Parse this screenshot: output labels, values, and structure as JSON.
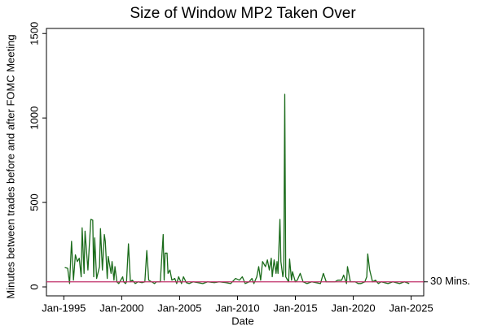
{
  "chart_data": {
    "type": "line",
    "title": "Size of Window MP2 Taken Over",
    "x_label": "Date",
    "y_label": "Minutes between trades before and after FOMC Meeting",
    "color": "#1a6b1a",
    "x": [
      "1995-02",
      "1995-05",
      "1995-07",
      "1995-09",
      "1995-11",
      "1996-01",
      "1996-03",
      "1996-05",
      "1996-07",
      "1996-08",
      "1996-10",
      "1996-11",
      "1997-02",
      "1997-05",
      "1997-07",
      "1997-08",
      "1997-09",
      "1997-11",
      "1998-02",
      "1998-03",
      "1998-05",
      "1998-07",
      "1998-08",
      "1998-10",
      "1998-11",
      "1999-02",
      "1999-03",
      "1999-05",
      "1999-06",
      "1999-08",
      "1999-10",
      "2000-02",
      "2000-03",
      "2000-05",
      "2000-06",
      "2000-08",
      "2000-10",
      "2000-12",
      "2001-03",
      "2001-06",
      "2001-10",
      "2002-01",
      "2002-03",
      "2002-05",
      "2002-08",
      "2002-11",
      "2003-01",
      "2003-05",
      "2003-08",
      "2003-09",
      "2003-10",
      "2003-12",
      "2004-01",
      "2004-03",
      "2004-05",
      "2004-08",
      "2004-10",
      "2004-12",
      "2005-03",
      "2005-05",
      "2005-08",
      "2005-11",
      "2006-03",
      "2006-08",
      "2007-01",
      "2007-06",
      "2008-01",
      "2008-06",
      "2009-01",
      "2009-06",
      "2009-11",
      "2010-03",
      "2010-06",
      "2010-09",
      "2011-01",
      "2011-04",
      "2011-06",
      "2011-09",
      "2011-11",
      "2012-01",
      "2012-03",
      "2012-06",
      "2012-08",
      "2012-10",
      "2012-12",
      "2013-01",
      "2013-03",
      "2013-05",
      "2013-06",
      "2013-07",
      "2013-09",
      "2013-10",
      "2013-12",
      "2014-01",
      "2014-02",
      "2014-03",
      "2014-06",
      "2014-07",
      "2014-09",
      "2014-10",
      "2015-01",
      "2015-03",
      "2015-06",
      "2015-09",
      "2016-01",
      "2016-06",
      "2017-03",
      "2017-06",
      "2017-09",
      "2018-03",
      "2018-06",
      "2018-09",
      "2019-01",
      "2019-03",
      "2019-06",
      "2019-07",
      "2019-10",
      "2020-03",
      "2020-06",
      "2020-09",
      "2021-01",
      "2021-03",
      "2021-04",
      "2021-06",
      "2021-09",
      "2021-12",
      "2022-03",
      "2022-06",
      "2023-01",
      "2023-06",
      "2024-01",
      "2024-06",
      "2024-11"
    ],
    "values": [
      115,
      110,
      20,
      270,
      40,
      190,
      150,
      170,
      60,
      350,
      80,
      330,
      100,
      400,
      395,
      60,
      290,
      50,
      120,
      345,
      100,
      310,
      270,
      50,
      180,
      80,
      150,
      40,
      120,
      30,
      20,
      60,
      30,
      20,
      30,
      255,
      30,
      40,
      20,
      30,
      25,
      30,
      215,
      40,
      30,
      20,
      30,
      30,
      310,
      40,
      200,
      200,
      80,
      100,
      40,
      50,
      20,
      60,
      20,
      60,
      25,
      20,
      30,
      25,
      20,
      30,
      25,
      30,
      25,
      20,
      50,
      40,
      60,
      20,
      30,
      50,
      20,
      60,
      120,
      40,
      150,
      120,
      160,
      100,
      170,
      60,
      160,
      80,
      150,
      80,
      400,
      150,
      60,
      100,
      1140,
      60,
      30,
      165,
      40,
      90,
      30,
      40,
      80,
      30,
      20,
      30,
      20,
      80,
      30,
      30,
      30,
      40,
      40,
      70,
      20,
      120,
      30,
      30,
      20,
      20,
      30,
      60,
      195,
      100,
      30,
      40,
      20,
      30,
      20,
      30,
      20,
      30,
      20
    ],
    "xlim": [
      "1993-07",
      "2026-02"
    ],
    "xticks": [
      {
        "value": "1995-01",
        "label": "Jan-1995"
      },
      {
        "value": "2000-01",
        "label": "Jan-2000"
      },
      {
        "value": "2005-01",
        "label": "Jan-2005"
      },
      {
        "value": "2010-01",
        "label": "Jan-2010"
      },
      {
        "value": "2015-01",
        "label": "Jan-2015"
      },
      {
        "value": "2020-01",
        "label": "Jan-2020"
      },
      {
        "value": "2025-01",
        "label": "Jan-2025"
      }
    ],
    "ylim": [
      -53,
      1530
    ],
    "yticks": [
      0,
      500,
      1000,
      1500
    ],
    "reference_line": {
      "value": 30,
      "label": "30 Mins.",
      "color": "#c0306a"
    }
  }
}
